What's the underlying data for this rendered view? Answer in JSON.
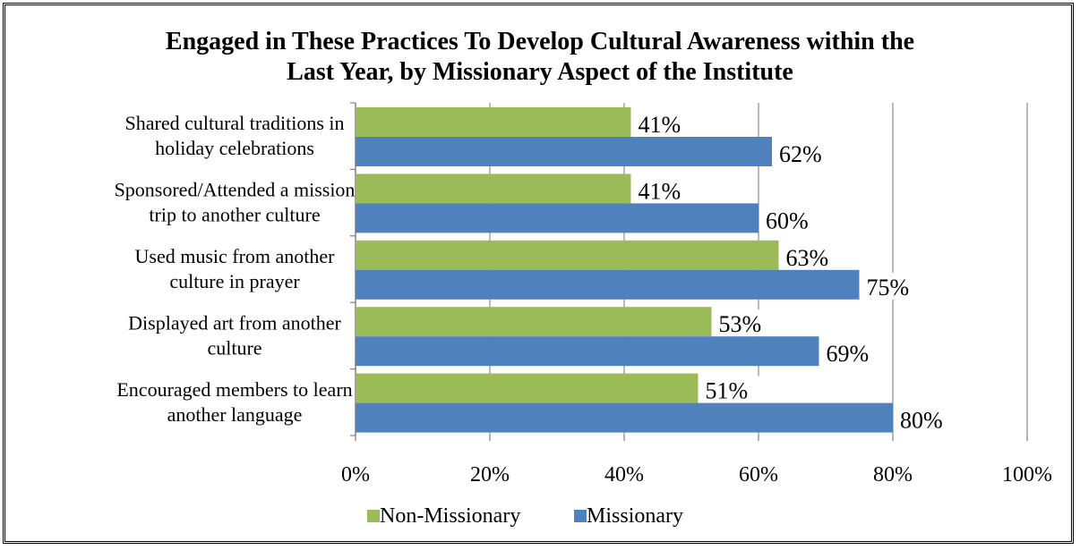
{
  "chart_data": {
    "type": "bar",
    "orientation": "horizontal",
    "title": "Engaged in These Practices To Develop Cultural Awareness within the Last Year, by Missionary Aspect of the Institute",
    "categories": [
      "Shared cultural traditions in holiday celebrations",
      "Sponsored/Attended a mission trip to another culture",
      "Used music from another culture in prayer",
      "Displayed art from another culture",
      "Encouraged members to learn another language"
    ],
    "series": [
      {
        "name": "Non-Missionary",
        "color": "#9BBB59",
        "values": [
          41,
          41,
          63,
          53,
          51
        ]
      },
      {
        "name": "Missionary",
        "color": "#4F81BD",
        "values": [
          62,
          60,
          75,
          69,
          80
        ]
      }
    ],
    "x_ticks": [
      "0%",
      "20%",
      "40%",
      "60%",
      "80%",
      "100%"
    ],
    "xlim": [
      0,
      100
    ],
    "value_suffix": "%",
    "grid": true,
    "legend_position": "bottom"
  }
}
